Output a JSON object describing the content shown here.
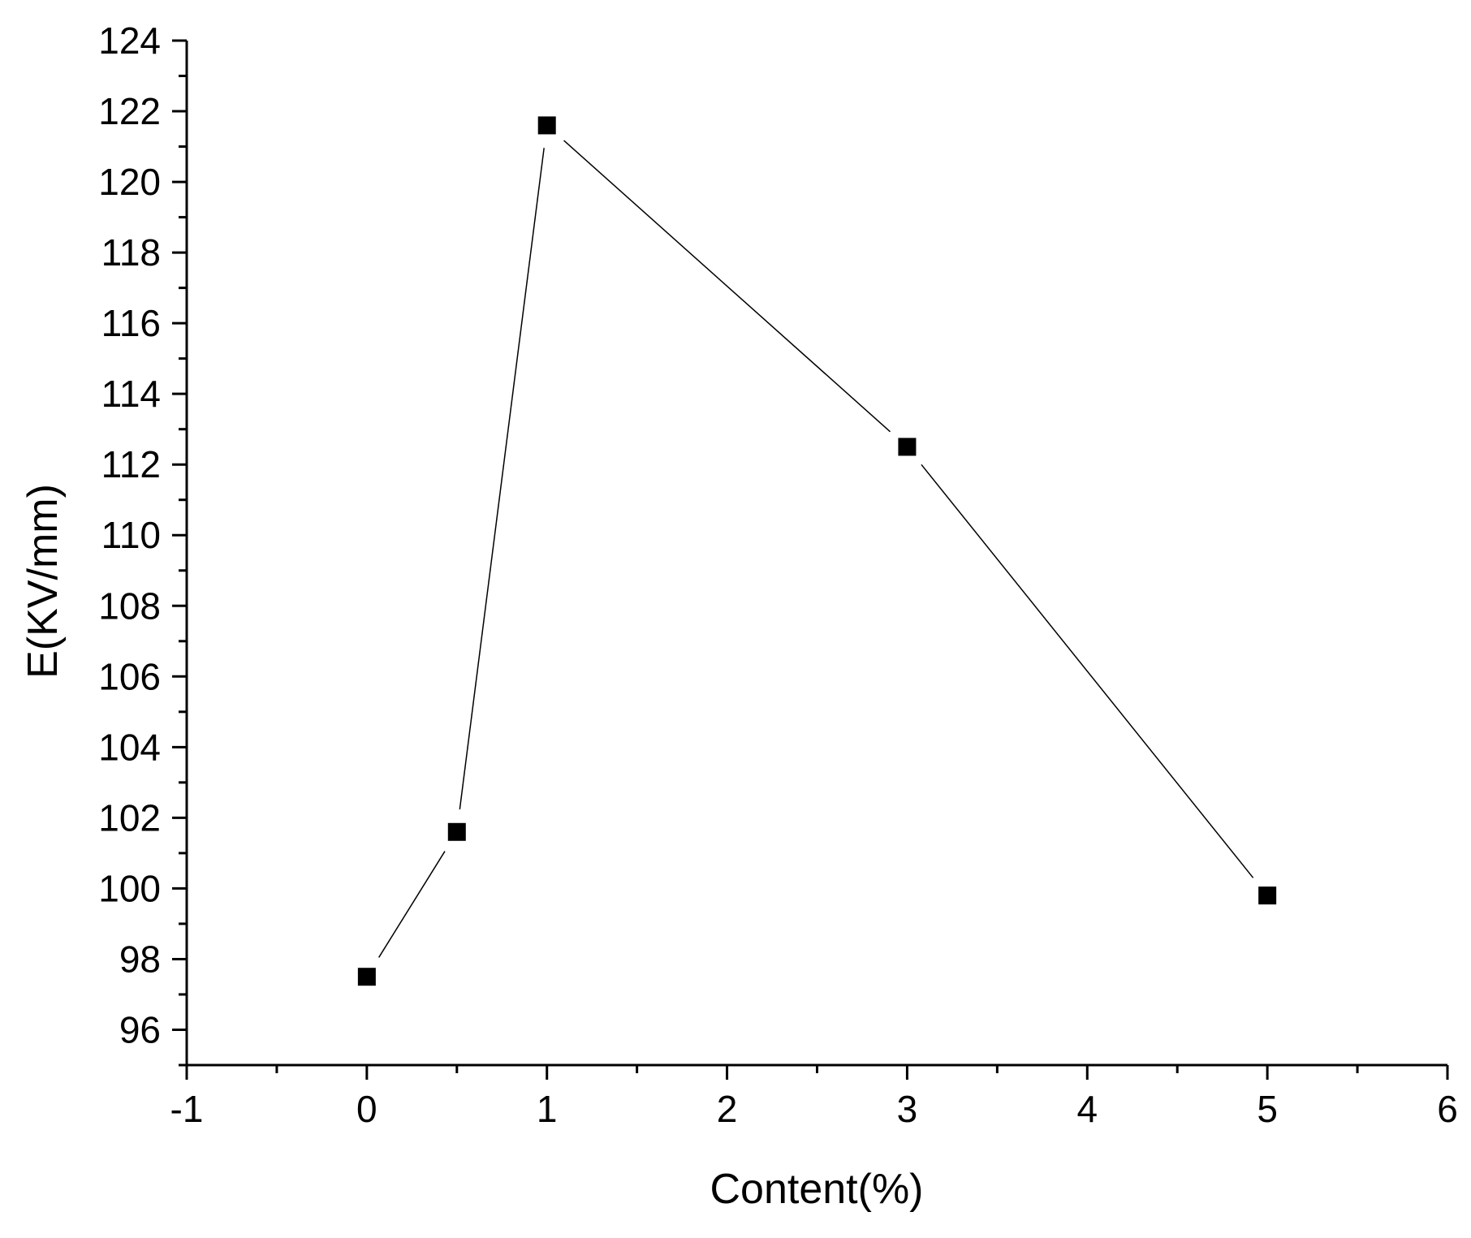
{
  "chart_data": {
    "type": "line",
    "title": "",
    "xlabel": "Content(%)",
    "ylabel": "E(KV/mm)",
    "xlim": [
      -1,
      6
    ],
    "ylim": [
      95,
      124
    ],
    "x_ticks": [
      -1,
      0,
      1,
      2,
      3,
      4,
      5,
      6
    ],
    "y_ticks": [
      96,
      98,
      100,
      102,
      104,
      106,
      108,
      110,
      112,
      114,
      116,
      118,
      120,
      122,
      124
    ],
    "x_tick_labels": [
      "-1",
      "0",
      "1",
      "2",
      "3",
      "4",
      "5",
      "6"
    ],
    "y_tick_labels": [
      "96",
      "98",
      "100",
      "102",
      "104",
      "106",
      "108",
      "110",
      "112",
      "114",
      "116",
      "118",
      "120",
      "122",
      "124"
    ],
    "grid": false,
    "legend": "none",
    "series": [
      {
        "marker": "square",
        "color": "#000000",
        "x": [
          0,
          0.5,
          1,
          3,
          5
        ],
        "y": [
          97.5,
          101.6,
          121.6,
          112.5,
          99.8
        ]
      }
    ]
  }
}
